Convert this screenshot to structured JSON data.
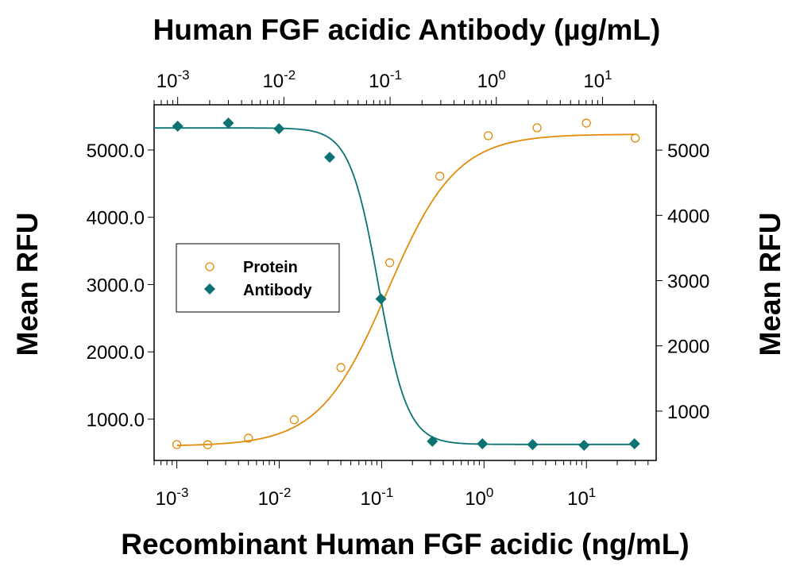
{
  "chart_data": {
    "type": "scatter",
    "title_top": "Human FGF acidic Antibody (µg/mL)",
    "xlabel": "Recombinant Human FGF acidic (ng/mL)",
    "ylabel_left": "Mean RFU",
    "ylabel_right": "Mean RFU",
    "x_bottom": {
      "scale": "log",
      "range": [
        0.0006,
        48
      ],
      "ticks": [
        0.001,
        0.01,
        0.1,
        1,
        10
      ],
      "tick_labels": [
        "-3",
        "-2",
        "-1",
        "0",
        "1"
      ]
    },
    "x_top": {
      "scale": "log",
      "range": [
        0.0006,
        32
      ],
      "ticks": [
        0.001,
        0.01,
        0.1,
        1,
        10
      ],
      "tick_labels": [
        "-3",
        "-2",
        "-1",
        "0",
        "1"
      ]
    },
    "y_left": {
      "range": [
        386,
        5672
      ],
      "ticks": [
        1000,
        2000,
        3000,
        4000,
        5000
      ],
      "tick_labels": [
        "1000.0",
        "2000.0",
        "3000.0",
        "4000.0",
        "5000.0"
      ]
    },
    "y_right": {
      "range": [
        244,
        5695
      ],
      "ticks": [
        1000,
        2000,
        3000,
        4000,
        5000
      ],
      "tick_labels": [
        "1000",
        "2000",
        "3000",
        "4000",
        "5000"
      ]
    },
    "grid": false,
    "legend_placement": "center-left",
    "series": [
      {
        "name": "Protein",
        "marker": "open-circle",
        "color": "#E38B0B",
        "x_axis": "bottom",
        "y_axis": "left",
        "x": [
          0.001,
          0.002,
          0.005,
          0.014,
          0.04,
          0.12,
          0.37,
          1.1,
          3.3,
          10,
          30
        ],
        "y": [
          622,
          620,
          717,
          990,
          1767,
          3325,
          4611,
          5212,
          5330,
          5400,
          5177
        ],
        "fit": {
          "bottom": 600,
          "top": 5235,
          "ec50": 0.115,
          "hill": 1.3
        }
      },
      {
        "name": "Antibody",
        "marker": "filled-diamond",
        "color": "#0B7371",
        "x_axis": "top",
        "y_axis": "right",
        "x": [
          0.001,
          0.003,
          0.009,
          0.027,
          0.082,
          0.25,
          0.74,
          2.2,
          6.7,
          20
        ],
        "y": [
          5366,
          5415,
          5329,
          4890,
          2720,
          537,
          500,
          488,
          476,
          500
        ],
        "fit": {
          "bottom": 490,
          "top": 5340,
          "ec50": 0.078,
          "hill": 3.2
        }
      }
    ]
  }
}
